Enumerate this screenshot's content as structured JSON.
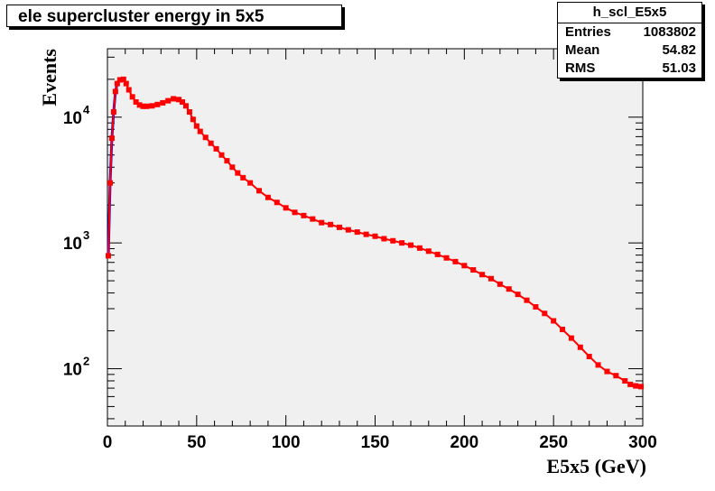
{
  "chart_data": {
    "type": "line",
    "title": "ele supercluster energy in 5x5",
    "xlabel": "E5x5 (GeV)",
    "ylabel": "Events",
    "xlim": [
      0,
      300
    ],
    "ylim": [
      35,
      35000
    ],
    "y_scale": "log",
    "x_ticks": [
      "0",
      "50",
      "100",
      "150",
      "200",
      "250",
      "300"
    ],
    "y_ticks": [
      {
        "base": "10",
        "exp": "2",
        "value": 100
      },
      {
        "base": "10",
        "exp": "3",
        "value": 1000
      },
      {
        "base": "10",
        "exp": "4",
        "value": 10000
      }
    ],
    "marker_color": "#ff0000",
    "line_color": "#0000ff",
    "frame_fill": "#f0f0f0",
    "grid": false,
    "legend": "none",
    "series": [
      {
        "x": [
          0.5,
          1.5,
          2.5,
          3.5,
          4.5,
          5.5,
          7,
          9,
          10.5,
          12,
          14,
          16,
          18,
          20,
          22,
          25,
          28,
          31,
          34,
          37,
          40,
          42,
          44,
          46,
          48,
          50,
          52,
          55,
          58,
          61,
          64,
          67,
          70,
          73,
          76,
          80,
          85,
          90,
          95,
          100,
          105,
          110,
          115,
          120,
          125,
          130,
          135,
          140,
          145,
          150,
          155,
          160,
          165,
          170,
          175,
          180,
          185,
          190,
          195,
          200,
          205,
          210,
          215,
          220,
          225,
          230,
          235,
          240,
          245,
          250,
          255,
          260,
          265,
          270,
          275,
          280,
          285,
          290,
          293,
          296,
          299
        ],
        "y": [
          790,
          3000,
          6800,
          11000,
          16000,
          18500,
          19800,
          20000,
          18500,
          16500,
          14500,
          13200,
          12500,
          12200,
          12200,
          12300,
          12600,
          13000,
          13500,
          14000,
          13800,
          13200,
          12300,
          11000,
          9600,
          8500,
          7700,
          6900,
          6200,
          5600,
          5000,
          4500,
          4000,
          3600,
          3300,
          3000,
          2600,
          2300,
          2100,
          1900,
          1750,
          1650,
          1550,
          1450,
          1400,
          1330,
          1270,
          1220,
          1170,
          1130,
          1080,
          1040,
          1000,
          960,
          910,
          860,
          810,
          760,
          710,
          660,
          610,
          560,
          520,
          470,
          430,
          390,
          350,
          310,
          275,
          240,
          205,
          175,
          148,
          125,
          107,
          95,
          88,
          80,
          75,
          73,
          72
        ]
      }
    ]
  },
  "stats": {
    "name": "h_scl_E5x5",
    "rows": [
      {
        "label": "Entries",
        "value": "1083802"
      },
      {
        "label": "Mean",
        "value": "54.82"
      },
      {
        "label": "RMS",
        "value": "51.03"
      }
    ]
  }
}
